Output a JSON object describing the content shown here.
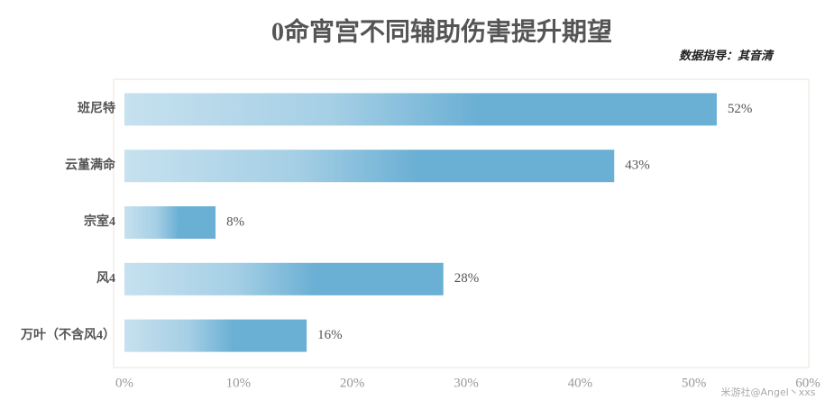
{
  "chart_data": {
    "type": "barh",
    "title": "0命宵宫不同辅助伤害提升期望",
    "subtitle": "数据指导：其音清",
    "categories": [
      "班尼特",
      "云堇满命",
      "宗室4",
      "风4",
      "万叶（不含风4）"
    ],
    "values": [
      52,
      43,
      8,
      28,
      16
    ],
    "value_labels": [
      "52%",
      "43%",
      "8%",
      "28%",
      "16%"
    ],
    "color": "#6aafd4",
    "xlim": [
      0,
      60
    ],
    "xticks": [
      {
        "value": 0,
        "label": "0%"
      },
      {
        "value": 10,
        "label": "10%"
      },
      {
        "value": 20,
        "label": "20%"
      },
      {
        "value": 30,
        "label": "30%"
      },
      {
        "value": 40,
        "label": "40%"
      },
      {
        "value": 50,
        "label": "50%"
      },
      {
        "value": 60,
        "label": "60%"
      }
    ],
    "watermark": "米游社@Angel丶xxs"
  }
}
